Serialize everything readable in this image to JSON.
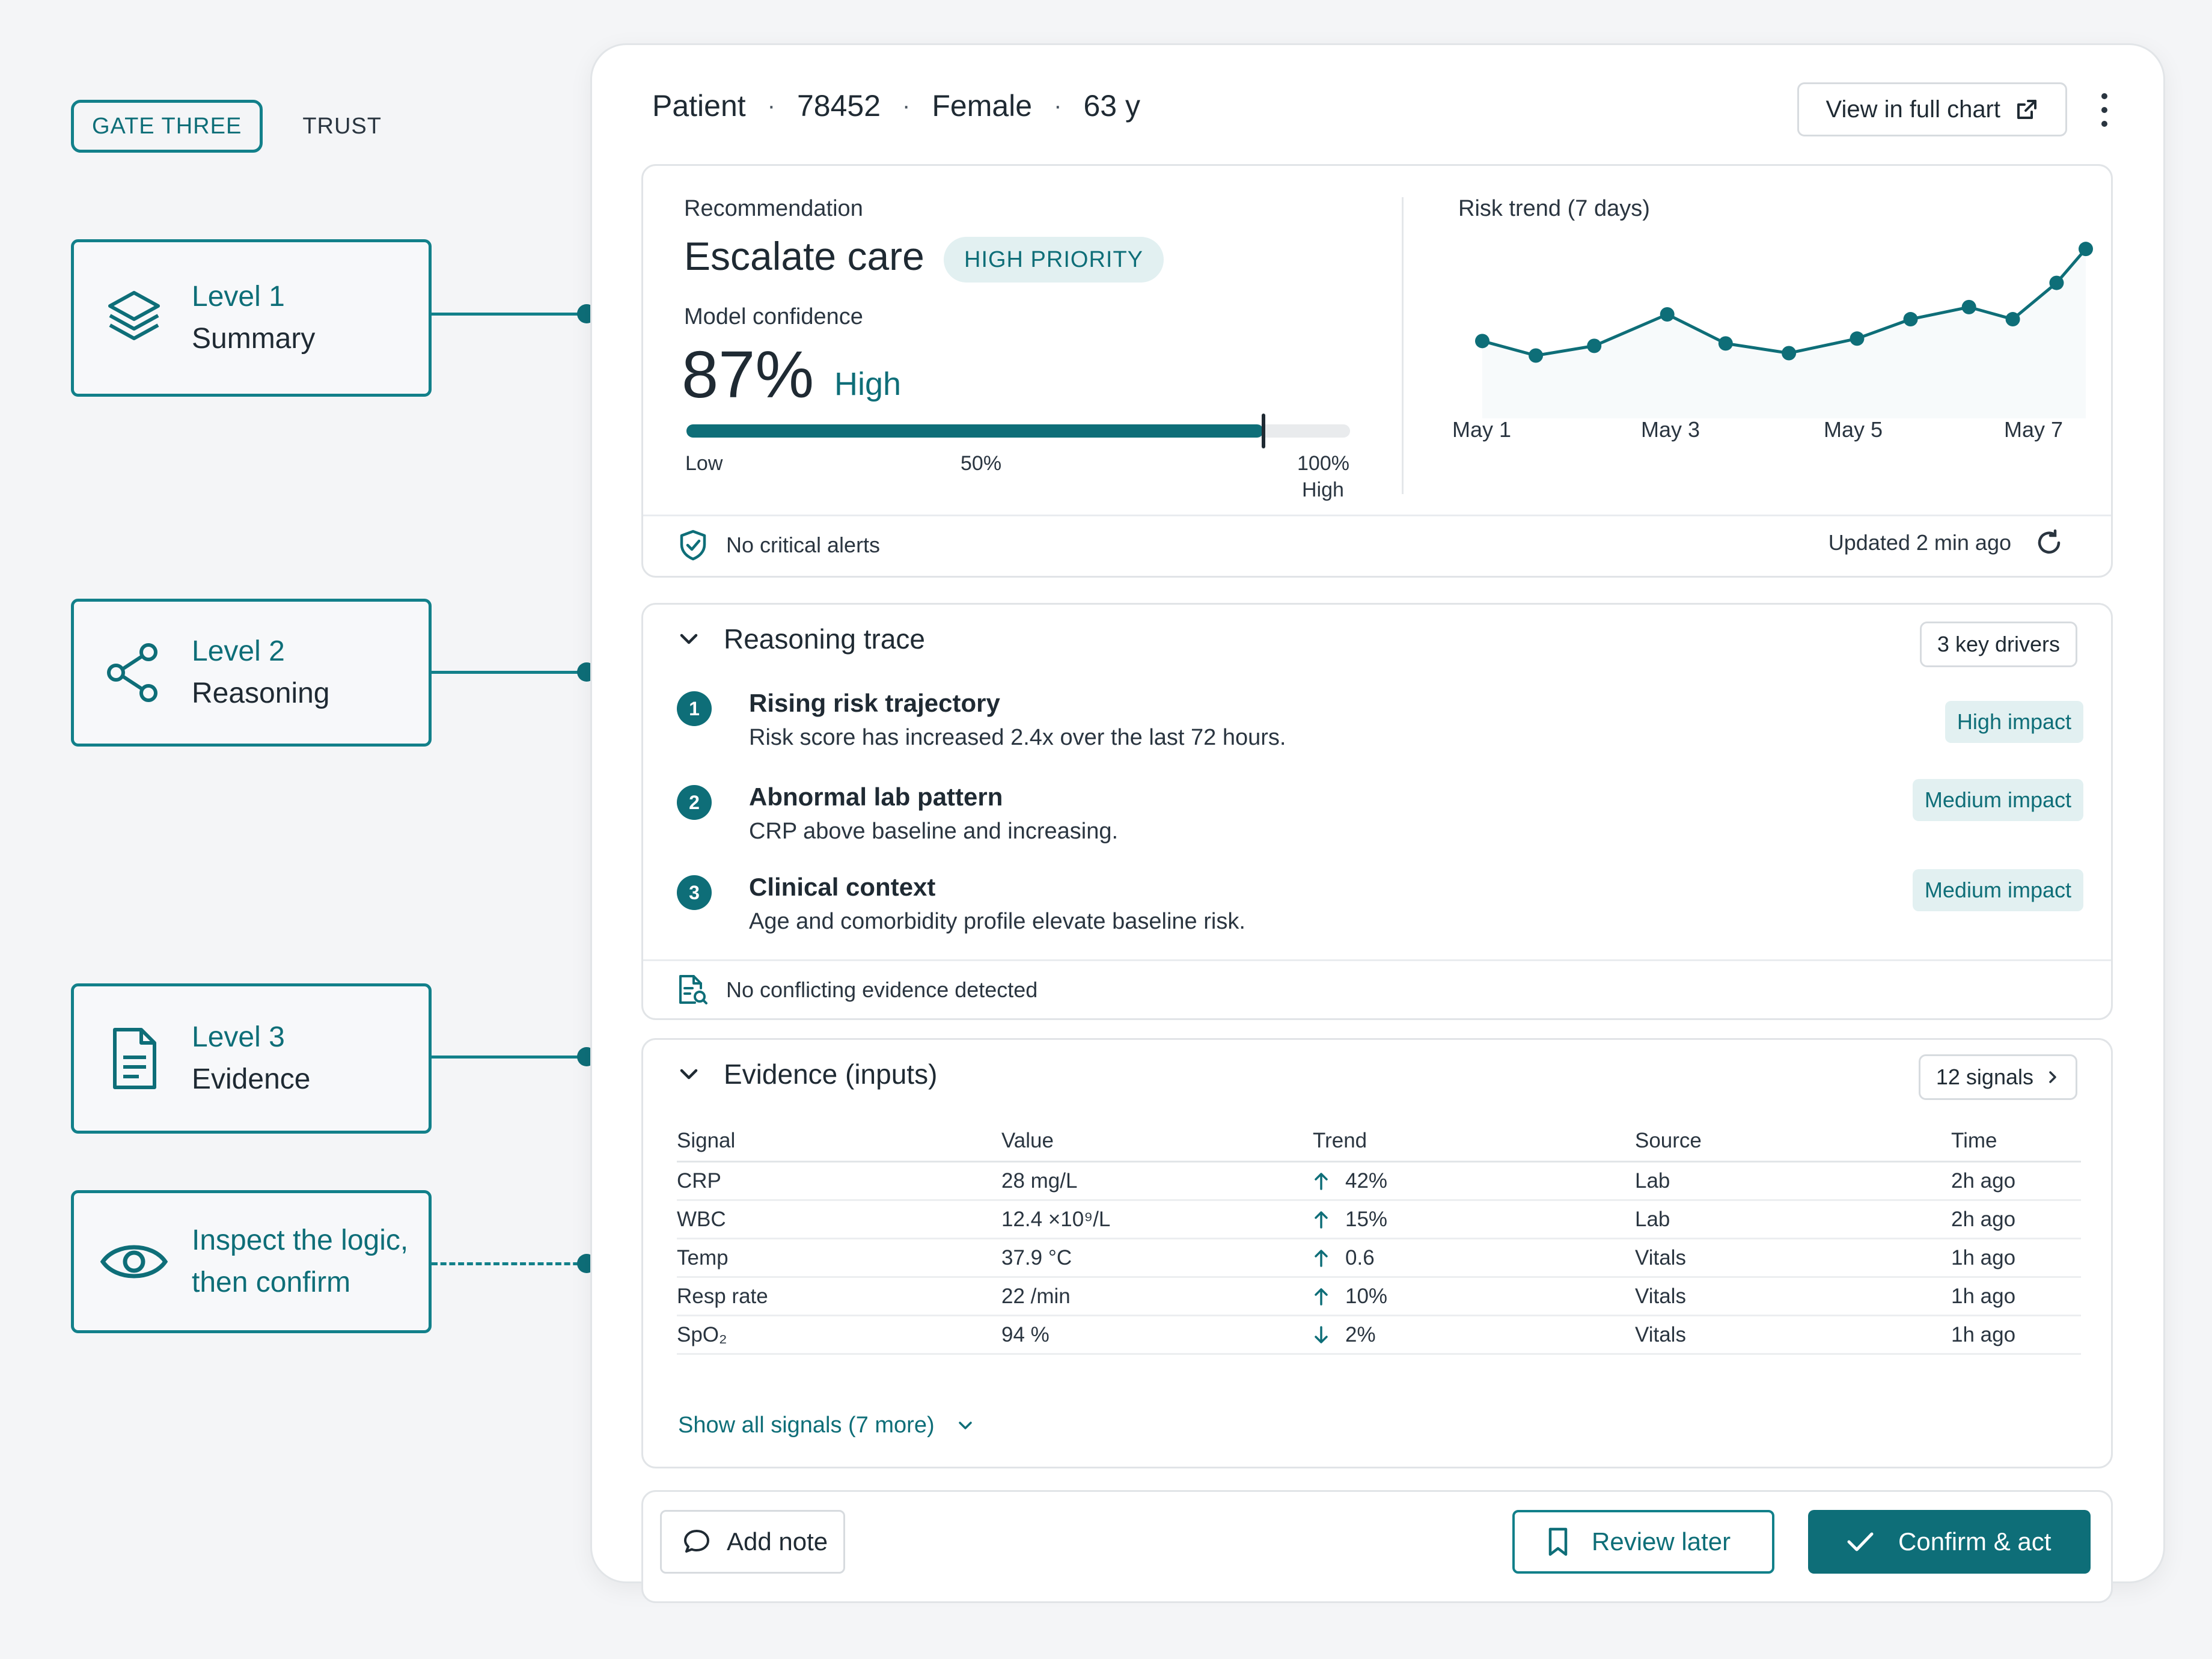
{
  "guide": {
    "gate_label": "GATE THREE",
    "trust_label": "TRUST",
    "levels": [
      {
        "title": "Level 1",
        "subtitle": "Summary",
        "icon": "layers-icon"
      },
      {
        "title": "Level 2",
        "subtitle": "Reasoning",
        "icon": "share-nodes-icon"
      },
      {
        "title": "Level 3",
        "subtitle": "Evidence",
        "icon": "document-icon"
      }
    ],
    "inspect": {
      "line1": "Inspect the logic,",
      "line2": "then confirm",
      "icon": "eye-icon"
    }
  },
  "header": {
    "patient_label": "Patient",
    "patient_id": "78452",
    "sex": "Female",
    "age": "63 y",
    "separator": "·",
    "full_chart_label": "View in full chart"
  },
  "summary": {
    "recommendation_label": "Recommendation",
    "recommendation": "Escalate care",
    "priority_badge": "HIGH PRIORITY",
    "confidence_label": "Model confidence",
    "confidence_value": "87%",
    "confidence_level": "High",
    "confidence_fraction": 0.87,
    "scale_low": "Low",
    "scale_mid": "50%",
    "scale_max": "100%",
    "scale_high": "High",
    "trend_title": "Risk trend (7 days)",
    "alerts_text": "No critical alerts",
    "updated_text": "Updated 2 min ago"
  },
  "chart_data": {
    "type": "line",
    "title": "Risk trend (7 days)",
    "x_ticks": [
      "May 1",
      "May 3",
      "May 5",
      "May 7"
    ],
    "x": [
      1.0,
      1.55,
      2.15,
      2.9,
      3.5,
      4.15,
      4.85,
      5.4,
      6.0,
      6.45,
      6.9,
      7.2
    ],
    "values": [
      0.62,
      0.56,
      0.6,
      0.73,
      0.61,
      0.57,
      0.63,
      0.71,
      0.76,
      0.71,
      0.86,
      1.0
    ],
    "ylim": [
      0.4,
      1.05
    ],
    "grid": false,
    "color": "#0e6e78"
  },
  "reasoning": {
    "title": "Reasoning trace",
    "drivers_chip": "3 key drivers",
    "drivers": [
      {
        "num": "1",
        "title": "Rising risk trajectory",
        "desc": "Risk score has increased 2.4x over the last 72 hours.",
        "impact": "High impact"
      },
      {
        "num": "2",
        "title": "Abnormal lab pattern",
        "desc": "CRP above baseline and increasing.",
        "impact": "Medium impact"
      },
      {
        "num": "3",
        "title": "Clinical context",
        "desc": "Age and comorbidity profile elevate baseline risk.",
        "impact": "Medium impact"
      }
    ],
    "conflict_text": "No conflicting evidence detected"
  },
  "evidence": {
    "title": "Evidence (inputs)",
    "signals_chip": "12 signals",
    "columns": [
      "Signal",
      "Value",
      "Trend",
      "Source",
      "Time"
    ],
    "rows": [
      {
        "signal": "CRP",
        "value": "28 mg/L",
        "dir": "up",
        "trend": "42%",
        "source": "Lab",
        "time": "2h ago"
      },
      {
        "signal": "WBC",
        "value": "12.4 ×10⁹/L",
        "dir": "up",
        "trend": "15%",
        "source": "Lab",
        "time": "2h ago"
      },
      {
        "signal": "Temp",
        "value": "37.9 °C",
        "dir": "up",
        "trend": "0.6",
        "source": "Vitals",
        "time": "1h ago"
      },
      {
        "signal": "Resp rate",
        "value": "22 /min",
        "dir": "up",
        "trend": "10%",
        "source": "Vitals",
        "time": "1h ago"
      },
      {
        "signal": "SpO₂",
        "value": "94 %",
        "dir": "down",
        "trend": "2%",
        "source": "Vitals",
        "time": "1h ago"
      }
    ],
    "show_all": "Show all signals (7 more)"
  },
  "actions": {
    "add_note": "Add note",
    "review_later": "Review later",
    "confirm": "Confirm & act"
  },
  "colors": {
    "accent": "#0e6e78",
    "accent_soft": "#e2f0f1",
    "text": "#1f2a33"
  }
}
